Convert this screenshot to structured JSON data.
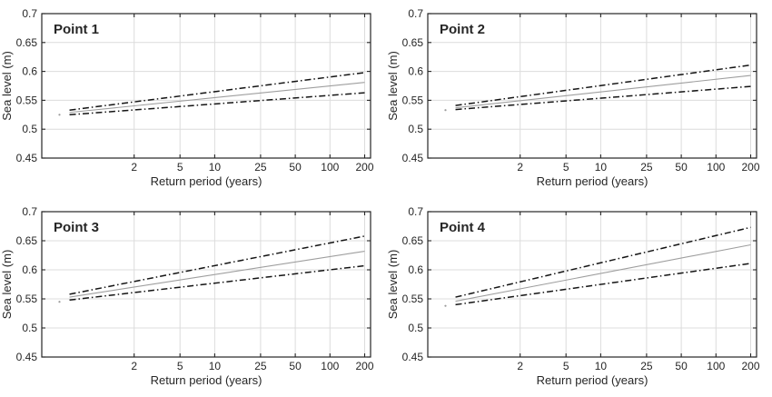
{
  "figure": {
    "background": "#ffffff",
    "text_color": "#262626",
    "axis_color": "#262626",
    "grid_color": "#dcdcdc",
    "bound_color": "#141414",
    "estimate_color": "#9e9e9e",
    "marker_color": "#9a9a9a"
  },
  "chart_data": [
    {
      "type": "line",
      "title": "Point 1",
      "xlabel": "Return period (years)",
      "ylabel": "Sea level (m)",
      "xscale": "log",
      "xlim": [
        0.316,
        225
      ],
      "ylim": [
        0.45,
        0.7
      ],
      "xticks": [
        2,
        5,
        10,
        25,
        50,
        100,
        200
      ],
      "yticks": [
        0.45,
        0.5,
        0.55,
        0.6,
        0.65,
        0.7
      ],
      "grid": true,
      "x": [
        0.55,
        200
      ],
      "series": [
        {
          "name": "upper-confidence-bound",
          "style": "dashdot",
          "values": [
            0.533,
            0.598
          ]
        },
        {
          "name": "central-estimate",
          "style": "solid",
          "values": [
            0.529,
            0.581
          ]
        },
        {
          "name": "lower-confidence-bound",
          "style": "dashdot",
          "values": [
            0.525,
            0.563
          ]
        }
      ],
      "marker": {
        "x": 0.45,
        "y": 0.525
      }
    },
    {
      "type": "line",
      "title": "Point 2",
      "xlabel": "Return period (years)",
      "ylabel": "Sea level (m)",
      "xscale": "log",
      "xlim": [
        0.316,
        225
      ],
      "ylim": [
        0.45,
        0.7
      ],
      "xticks": [
        2,
        5,
        10,
        25,
        50,
        100,
        200
      ],
      "yticks": [
        0.45,
        0.5,
        0.55,
        0.6,
        0.65,
        0.7
      ],
      "grid": true,
      "x": [
        0.55,
        200
      ],
      "series": [
        {
          "name": "upper-confidence-bound",
          "style": "dashdot",
          "values": [
            0.541,
            0.611
          ]
        },
        {
          "name": "central-estimate",
          "style": "solid",
          "values": [
            0.537,
            0.593
          ]
        },
        {
          "name": "lower-confidence-bound",
          "style": "dashdot",
          "values": [
            0.534,
            0.574
          ]
        }
      ],
      "marker": {
        "x": 0.45,
        "y": 0.533
      }
    },
    {
      "type": "line",
      "title": "Point 3",
      "xlabel": "Return period (years)",
      "ylabel": "Sea level (m)",
      "xscale": "log",
      "xlim": [
        0.316,
        225
      ],
      "ylim": [
        0.45,
        0.7
      ],
      "xticks": [
        2,
        5,
        10,
        25,
        50,
        100,
        200
      ],
      "yticks": [
        0.45,
        0.5,
        0.55,
        0.6,
        0.65,
        0.7
      ],
      "grid": true,
      "x": [
        0.55,
        200
      ],
      "series": [
        {
          "name": "upper-confidence-bound",
          "style": "dashdot",
          "values": [
            0.558,
            0.658
          ]
        },
        {
          "name": "central-estimate",
          "style": "solid",
          "values": [
            0.553,
            0.632
          ]
        },
        {
          "name": "lower-confidence-bound",
          "style": "dashdot",
          "values": [
            0.548,
            0.607
          ]
        }
      ],
      "marker": {
        "x": 0.45,
        "y": 0.545
      }
    },
    {
      "type": "line",
      "title": "Point 4",
      "xlabel": "Return period (years)",
      "ylabel": "Sea level (m)",
      "xscale": "log",
      "xlim": [
        0.316,
        225
      ],
      "ylim": [
        0.45,
        0.7
      ],
      "xticks": [
        2,
        5,
        10,
        25,
        50,
        100,
        200
      ],
      "yticks": [
        0.45,
        0.5,
        0.55,
        0.6,
        0.65,
        0.7
      ],
      "grid": true,
      "x": [
        0.55,
        200
      ],
      "series": [
        {
          "name": "upper-confidence-bound",
          "style": "dashdot",
          "values": [
            0.553,
            0.673
          ]
        },
        {
          "name": "central-estimate",
          "style": "solid",
          "values": [
            0.546,
            0.643
          ]
        },
        {
          "name": "lower-confidence-bound",
          "style": "dashdot",
          "values": [
            0.54,
            0.611
          ]
        }
      ],
      "marker": {
        "x": 0.45,
        "y": 0.538
      }
    }
  ]
}
